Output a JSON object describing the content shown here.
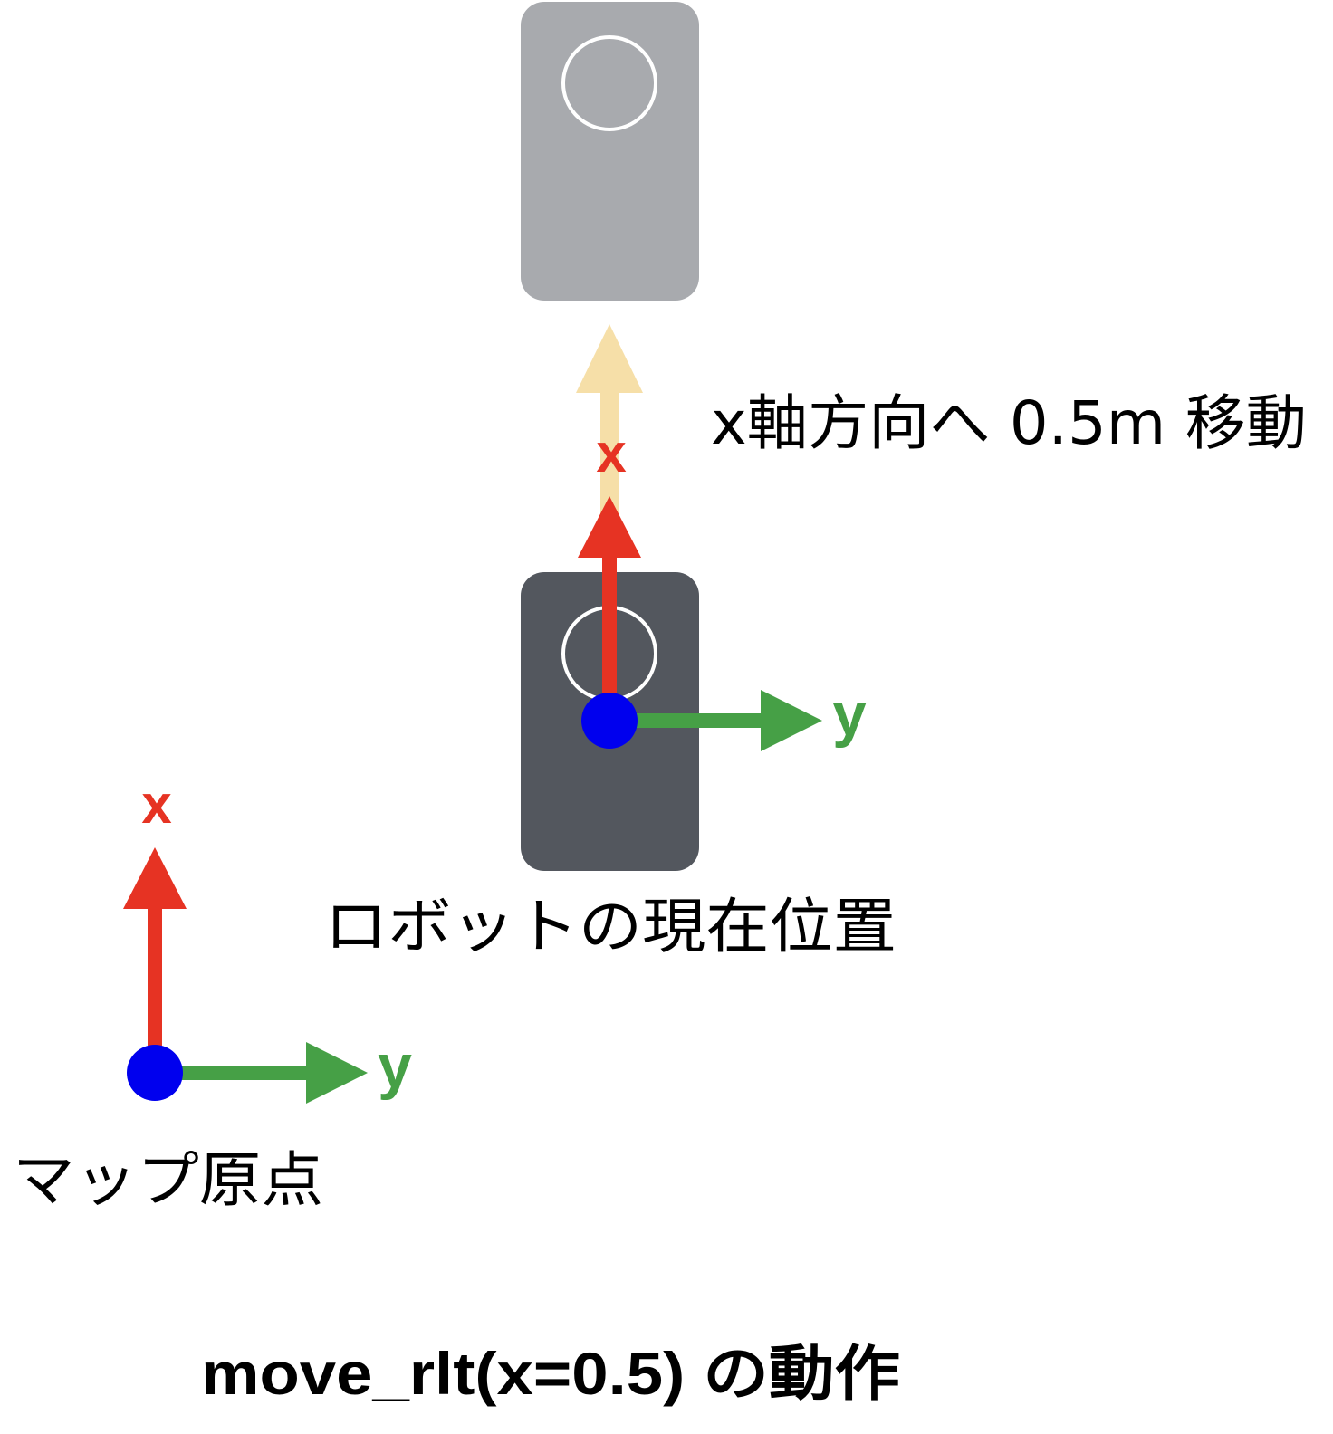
{
  "colors": {
    "background": "#ffffff",
    "robot_current": "#53575e",
    "robot_target": "#a8aaae",
    "robot_circle": "#ffffff",
    "x_axis": "#e63323",
    "y_axis": "#46a046",
    "origin_dot": "#0000ee",
    "move_arrow": "#f6dfa8",
    "text": "#000000"
  },
  "map_origin": {
    "x_label": "x",
    "y_label": "y",
    "caption": "マップ原点"
  },
  "robot_current": {
    "x_label": "x",
    "y_label": "y",
    "caption": "ロボットの現在位置"
  },
  "movement": {
    "caption": "x軸方向へ 0.5m 移動"
  },
  "footer": {
    "title": "move_rlt(x=0.5) の動作"
  }
}
